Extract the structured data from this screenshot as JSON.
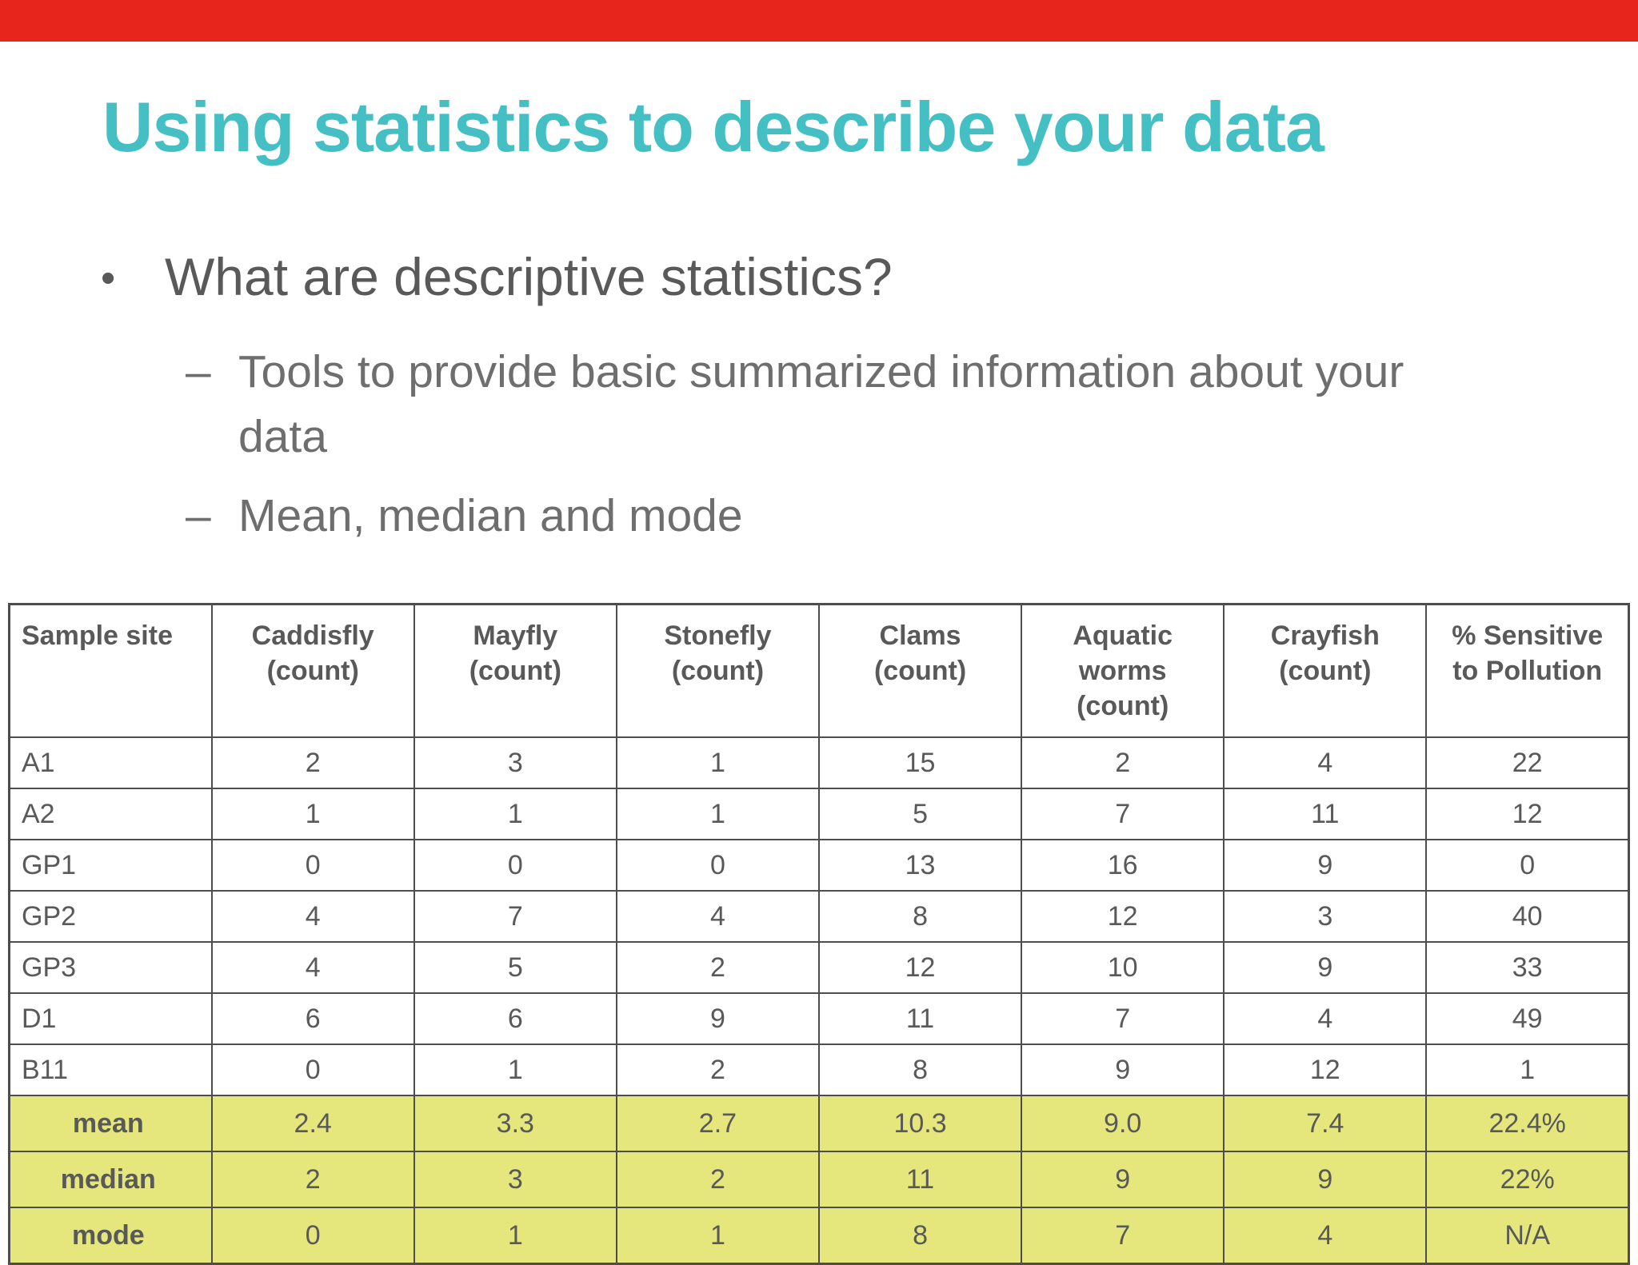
{
  "slide": {
    "title": "Using statistics to describe your data",
    "bullet_marker": "•",
    "bullet": "What are descriptive statistics?",
    "sub_bullet_marker": "–",
    "sub_bullets": [
      "Tools to provide basic summarized information about your data",
      "Mean, median and mode"
    ]
  },
  "colors": {
    "top_bar_red": "#e8251d",
    "title_teal": "#44bfc4",
    "body_text_gray": "#6e6e6e",
    "table_text_gray": "#595959",
    "table_border_gray": "#4d4d4d",
    "summary_highlight_yellow": "#e5e67b"
  },
  "chart_data": {
    "type": "table",
    "columns": [
      "Sample site",
      "Caddisfly\n(count)",
      "Mayfly\n(count)",
      "Stonefly\n(count)",
      "Clams\n(count)",
      "Aquatic\nworms\n(count)",
      "Crayfish\n(count)",
      "% Sensitive\nto Pollution"
    ],
    "rows": [
      [
        "A1",
        "2",
        "3",
        "1",
        "15",
        "2",
        "4",
        "22"
      ],
      [
        "A2",
        "1",
        "1",
        "1",
        "5",
        "7",
        "11",
        "12"
      ],
      [
        "GP1",
        "0",
        "0",
        "0",
        "13",
        "16",
        "9",
        "0"
      ],
      [
        "GP2",
        "4",
        "7",
        "4",
        "8",
        "12",
        "3",
        "40"
      ],
      [
        "GP3",
        "4",
        "5",
        "2",
        "12",
        "10",
        "9",
        "33"
      ],
      [
        "D1",
        "6",
        "6",
        "9",
        "11",
        "7",
        "4",
        "49"
      ],
      [
        "B11",
        "0",
        "1",
        "2",
        "8",
        "9",
        "12",
        "1"
      ]
    ],
    "summary_rows": [
      [
        "mean",
        "2.4",
        "3.3",
        "2.7",
        "10.3",
        "9.0",
        "7.4",
        "22.4%"
      ],
      [
        "median",
        "2",
        "3",
        "2",
        "11",
        "9",
        "9",
        "22%"
      ],
      [
        "mode",
        "0",
        "1",
        "1",
        "8",
        "7",
        "4",
        "N/A"
      ]
    ]
  }
}
